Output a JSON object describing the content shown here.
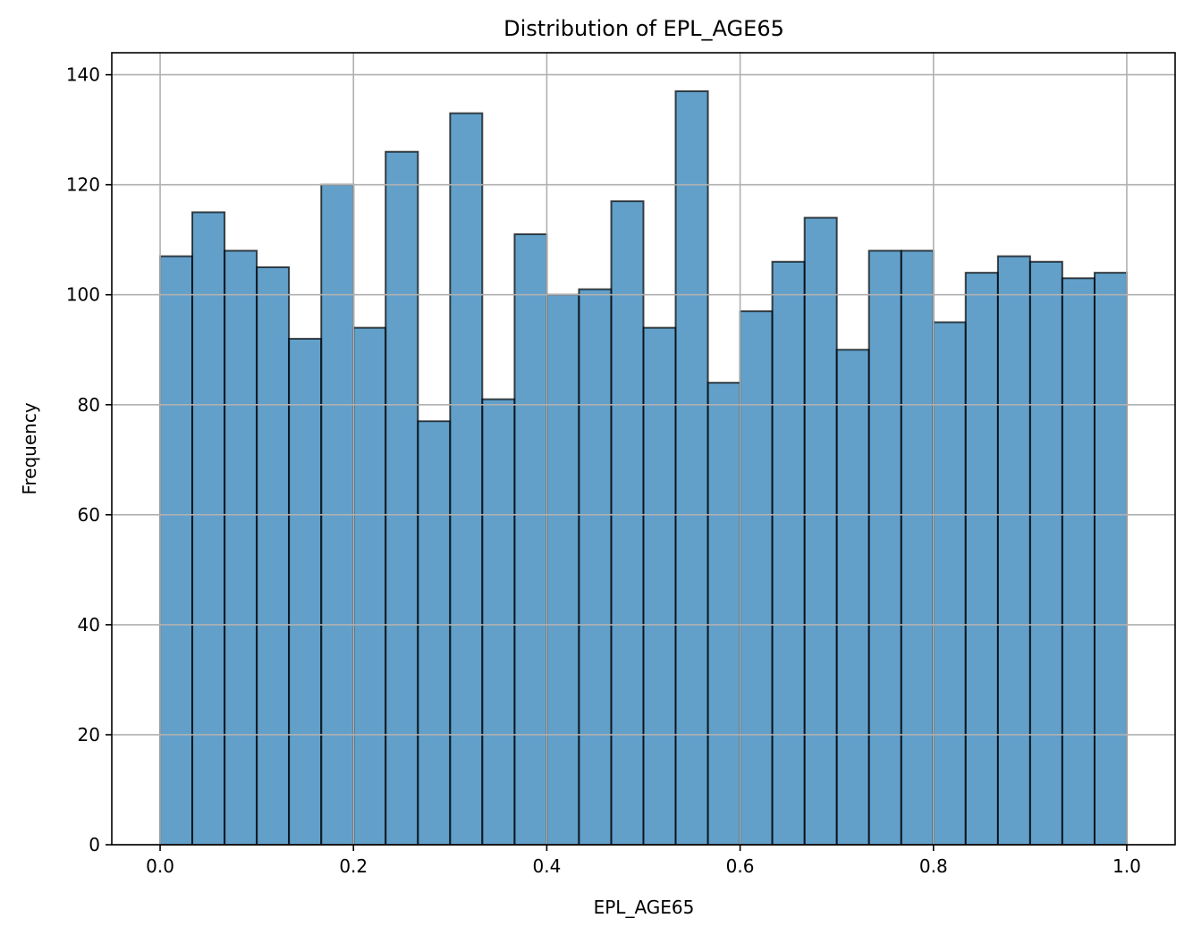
{
  "chart_data": {
    "type": "bar",
    "title": "Distribution of EPL_AGE65",
    "xlabel": "EPL_AGE65",
    "ylabel": "Frequency",
    "xlim": [
      -0.05,
      1.05
    ],
    "ylim": [
      0,
      144
    ],
    "grid": true,
    "bin_edges": [
      0.0,
      0.0333,
      0.0667,
      0.1,
      0.1333,
      0.1667,
      0.2,
      0.2333,
      0.2667,
      0.3,
      0.3333,
      0.3667,
      0.4,
      0.4333,
      0.4667,
      0.5,
      0.5333,
      0.5667,
      0.6,
      0.6333,
      0.6667,
      0.7,
      0.7333,
      0.7667,
      0.8,
      0.8333,
      0.8667,
      0.9,
      0.9333,
      0.9667,
      1.0
    ],
    "values": [
      107,
      115,
      108,
      105,
      92,
      120,
      94,
      126,
      77,
      133,
      81,
      111,
      100,
      101,
      117,
      94,
      137,
      84,
      97,
      106,
      114,
      90,
      108,
      108,
      95,
      104,
      107,
      106,
      103,
      104
    ],
    "x_ticks": [
      "0.0",
      "0.2",
      "0.4",
      "0.6",
      "0.8",
      "1.0"
    ],
    "y_ticks": [
      "0",
      "20",
      "40",
      "60",
      "80",
      "100",
      "120",
      "140"
    ],
    "colors": {
      "bar_fill": "#1f77b4",
      "bar_edge": "#000000",
      "grid": "#b0b0b0"
    }
  }
}
